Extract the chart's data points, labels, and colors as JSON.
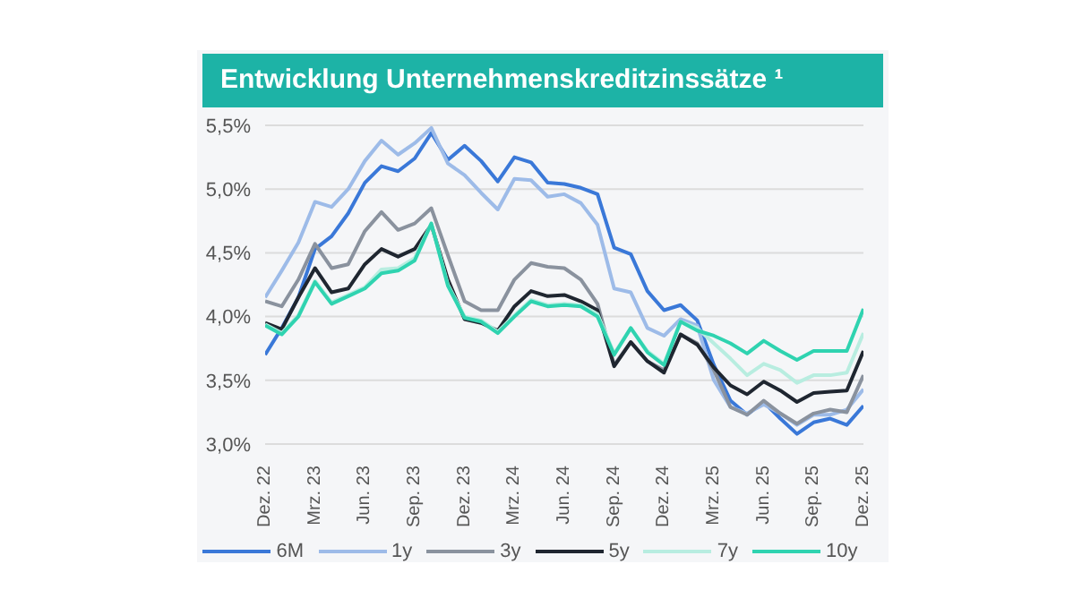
{
  "chart_data": {
    "type": "line",
    "title": "Entwicklung Unternehmenskreditzinssätze ¹",
    "categories": [
      "Dez. 22",
      null,
      null,
      "Mrz. 23",
      null,
      null,
      "Jun. 23",
      null,
      null,
      "Sep. 23",
      null,
      null,
      "Dez. 23",
      null,
      null,
      "Mrz. 24",
      null,
      null,
      "Jun. 24",
      null,
      null,
      "Sep. 24",
      null,
      null,
      "Dez. 24",
      null,
      null,
      "Mrz. 25",
      null,
      null,
      "Jun. 25",
      null,
      null,
      "Sep. 25",
      null,
      null,
      "Dez. 25"
    ],
    "series": [
      {
        "name": "6M",
        "color": "#3a78d8",
        "values": [
          3.7,
          3.91,
          4.15,
          4.53,
          4.63,
          4.81,
          5.05,
          5.18,
          5.14,
          5.24,
          5.44,
          5.23,
          5.34,
          5.22,
          5.06,
          5.25,
          5.21,
          5.05,
          5.04,
          5.01,
          4.96,
          4.54,
          4.49,
          4.2,
          4.05,
          4.09,
          3.97,
          3.62,
          3.34,
          3.23,
          3.33,
          3.2,
          3.08,
          3.17,
          3.2,
          3.15,
          3.3
        ]
      },
      {
        "name": "1y",
        "color": "#9dbbe8",
        "values": [
          4.15,
          4.36,
          4.58,
          4.9,
          4.86,
          5.0,
          5.22,
          5.38,
          5.27,
          5.36,
          5.48,
          5.2,
          5.11,
          4.97,
          4.84,
          5.08,
          5.07,
          4.94,
          4.96,
          4.89,
          4.72,
          4.22,
          4.19,
          3.91,
          3.85,
          3.98,
          3.93,
          3.5,
          3.29,
          3.24,
          3.31,
          3.24,
          3.15,
          3.23,
          3.23,
          3.27,
          3.43
        ]
      },
      {
        "name": "3y",
        "color": "#8a929e",
        "values": [
          4.12,
          4.08,
          4.29,
          4.57,
          4.38,
          4.41,
          4.67,
          4.82,
          4.68,
          4.73,
          4.85,
          4.48,
          4.12,
          4.05,
          4.05,
          4.29,
          4.42,
          4.39,
          4.38,
          4.29,
          4.1,
          3.62,
          3.8,
          3.65,
          3.58,
          3.86,
          3.79,
          3.58,
          3.29,
          3.23,
          3.34,
          3.24,
          3.16,
          3.24,
          3.27,
          3.25,
          3.54
        ]
      },
      {
        "name": "5y",
        "color": "#1f2630",
        "values": [
          3.95,
          3.9,
          4.15,
          4.38,
          4.19,
          4.22,
          4.41,
          4.53,
          4.47,
          4.53,
          4.72,
          4.29,
          3.98,
          3.95,
          3.89,
          4.08,
          4.2,
          4.16,
          4.17,
          4.12,
          4.05,
          3.61,
          3.8,
          3.65,
          3.56,
          3.86,
          3.78,
          3.6,
          3.46,
          3.39,
          3.49,
          3.42,
          3.33,
          3.4,
          3.41,
          3.42,
          3.73
        ]
      },
      {
        "name": "7y",
        "color": "#b8ede0",
        "values": [
          3.94,
          3.87,
          4.01,
          4.28,
          4.11,
          4.17,
          4.23,
          4.37,
          4.38,
          4.46,
          4.73,
          4.25,
          4.0,
          3.97,
          3.88,
          4.01,
          4.13,
          4.09,
          4.1,
          4.09,
          4.02,
          3.71,
          3.91,
          3.73,
          3.63,
          3.96,
          3.91,
          3.79,
          3.67,
          3.54,
          3.63,
          3.58,
          3.48,
          3.54,
          3.54,
          3.56,
          3.87
        ]
      },
      {
        "name": "10y",
        "color": "#2fd3b0",
        "values": [
          3.93,
          3.86,
          4.0,
          4.27,
          4.1,
          4.16,
          4.22,
          4.34,
          4.36,
          4.44,
          4.73,
          4.24,
          3.99,
          3.96,
          3.87,
          4.0,
          4.12,
          4.08,
          4.09,
          4.08,
          4.0,
          3.7,
          3.91,
          3.72,
          3.62,
          3.96,
          3.89,
          3.85,
          3.79,
          3.71,
          3.81,
          3.73,
          3.66,
          3.73,
          3.73,
          3.73,
          4.06
        ]
      }
    ],
    "ylim": [
      3.0,
      5.5
    ],
    "yticks": [
      {
        "value": 3.0,
        "label": "3,0%"
      },
      {
        "value": 3.5,
        "label": "3,5%"
      },
      {
        "value": 4.0,
        "label": "4,0%"
      },
      {
        "value": 4.5,
        "label": "4,5%"
      },
      {
        "value": 5.0,
        "label": "5,0%"
      },
      {
        "value": 5.5,
        "label": "5,5%"
      }
    ],
    "grid": "y",
    "legend": "bottom",
    "marker": "none",
    "line_style": "solid"
  }
}
